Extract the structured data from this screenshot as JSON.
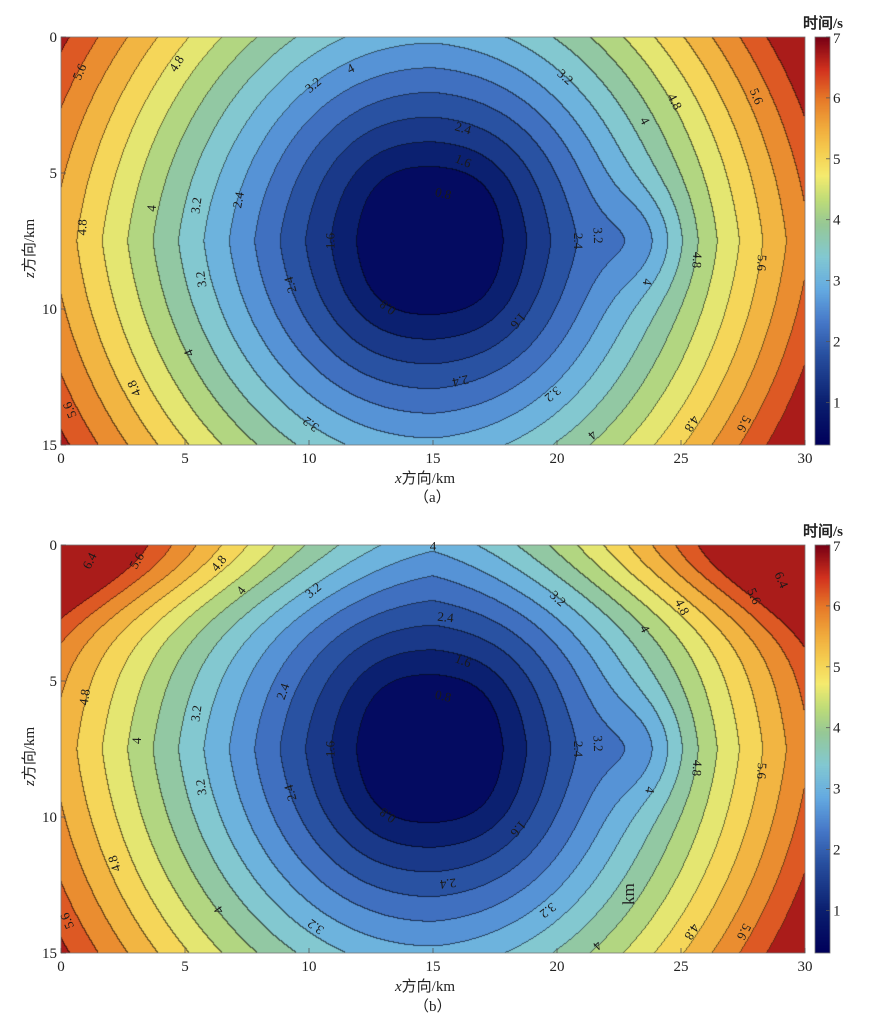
{
  "chart_data": [
    {
      "type": "contour",
      "panel_label": "（a）",
      "xlabel_var": "x",
      "xlabel": "方向/km",
      "ylabel_var": "z",
      "ylabel": "方向/km",
      "xlim": [
        0,
        30
      ],
      "ylim": [
        15,
        0
      ],
      "xticks": [
        0,
        5,
        10,
        15,
        20,
        25,
        30
      ],
      "yticks": [
        0,
        5,
        10,
        15
      ],
      "colorbar": {
        "title": "时间/s",
        "range": [
          0.3,
          7
        ],
        "ticks": [
          1,
          2,
          3,
          4,
          5,
          6,
          7
        ]
      },
      "contour_levels": [
        0.8,
        1.2,
        1.6,
        2.0,
        2.4,
        2.8,
        3.2,
        3.6,
        4.0,
        4.4,
        4.8,
        5.2,
        5.6,
        6.0,
        6.4
      ],
      "field": {
        "source_x_km": 15,
        "source_z_km": 7.5,
        "min_time_s": 0.3,
        "max_time_s": 7,
        "anomaly_x_km": 23.5,
        "anomaly_z_km": 7.5,
        "corner_speedup": false
      },
      "contour_labels": [
        {
          "text": "5.6",
          "x": 0.8,
          "z": 1.3
        },
        {
          "text": "4.8",
          "x": 4.7,
          "z": 1.0
        },
        {
          "text": "4",
          "x": 11.7,
          "z": 1.2
        },
        {
          "text": "3.2",
          "x": 10.2,
          "z": 1.8
        },
        {
          "text": "3.2",
          "x": 20.3,
          "z": 1.5
        },
        {
          "text": "2.4",
          "x": 16.2,
          "z": 3.4
        },
        {
          "text": "1.6",
          "x": 16.2,
          "z": 4.6
        },
        {
          "text": "0.8",
          "x": 15.4,
          "z": 5.8
        },
        {
          "text": "2.4",
          "x": 7.2,
          "z": 6.0
        },
        {
          "text": "3.2",
          "x": 5.5,
          "z": 6.2
        },
        {
          "text": "4",
          "x": 3.7,
          "z": 6.3
        },
        {
          "text": "4.8",
          "x": 0.9,
          "z": 7.0
        },
        {
          "text": "1.6",
          "x": 10.9,
          "z": 7.5
        },
        {
          "text": "2.4",
          "x": 20.8,
          "z": 7.5
        },
        {
          "text": "3.2",
          "x": 21.6,
          "z": 7.3
        },
        {
          "text": "4",
          "x": 23.6,
          "z": 9.0
        },
        {
          "text": "4.8",
          "x": 25.6,
          "z": 8.2
        },
        {
          "text": "5.6",
          "x": 28.2,
          "z": 8.3
        },
        {
          "text": "4.8",
          "x": 24.7,
          "z": 2.4
        },
        {
          "text": "5.6",
          "x": 28.0,
          "z": 2.2
        },
        {
          "text": "4",
          "x": 23.5,
          "z": 3.1
        },
        {
          "text": "3.2",
          "x": 5.7,
          "z": 8.9
        },
        {
          "text": "2.4",
          "x": 9.3,
          "z": 9.1
        },
        {
          "text": "0.8",
          "x": 13.2,
          "z": 9.9
        },
        {
          "text": "1.6",
          "x": 18.4,
          "z": 10.4
        },
        {
          "text": "4",
          "x": 5.2,
          "z": 11.6
        },
        {
          "text": "4.8",
          "x": 3.0,
          "z": 12.9
        },
        {
          "text": "5.6",
          "x": 0.4,
          "z": 13.7
        },
        {
          "text": "2.4",
          "x": 16.1,
          "z": 12.6
        },
        {
          "text": "3.2",
          "x": 19.8,
          "z": 13.1
        },
        {
          "text": "3.2",
          "x": 10.1,
          "z": 14.2
        },
        {
          "text": "4",
          "x": 21.4,
          "z": 14.6
        },
        {
          "text": "4.8",
          "x": 25.4,
          "z": 14.2
        },
        {
          "text": "5.6",
          "x": 27.5,
          "z": 14.2
        }
      ]
    },
    {
      "type": "contour",
      "panel_label": "（b）",
      "xlabel_var": "x",
      "xlabel": "方向/km",
      "ylabel_var": "z",
      "ylabel": "方向/km",
      "xlim": [
        0,
        30
      ],
      "ylim": [
        15,
        0
      ],
      "xticks": [
        0,
        5,
        10,
        15,
        20,
        25,
        30
      ],
      "yticks": [
        0,
        5,
        10,
        15
      ],
      "colorbar": {
        "title": "时间/s",
        "range": [
          0.3,
          7
        ],
        "ticks": [
          1,
          2,
          3,
          4,
          5,
          6,
          7
        ]
      },
      "contour_levels": [
        0.8,
        1.2,
        1.6,
        2.0,
        2.4,
        2.8,
        3.2,
        3.6,
        4.0,
        4.4,
        4.8,
        5.2,
        5.6,
        6.0,
        6.4
      ],
      "field": {
        "source_x_km": 15,
        "source_z_km": 7.5,
        "min_time_s": 0.3,
        "max_time_s": 7,
        "anomaly_x_km": 23.5,
        "anomaly_z_km": 7.5,
        "corner_speedup": true
      },
      "annotation": "km",
      "contour_labels": [
        {
          "text": "6.4",
          "x": 1.2,
          "z": 0.6
        },
        {
          "text": "5.6",
          "x": 3.1,
          "z": 0.6
        },
        {
          "text": "4.8",
          "x": 6.4,
          "z": 0.7
        },
        {
          "text": "4",
          "x": 15.0,
          "z": 0.1
        },
        {
          "text": "4",
          "x": 7.3,
          "z": 1.7
        },
        {
          "text": "3.2",
          "x": 10.2,
          "z": 1.7
        },
        {
          "text": "3.2",
          "x": 20.0,
          "z": 2.0
        },
        {
          "text": "2.4",
          "x": 15.5,
          "z": 2.7
        },
        {
          "text": "1.6",
          "x": 16.2,
          "z": 4.3
        },
        {
          "text": "0.8",
          "x": 15.4,
          "z": 5.6
        },
        {
          "text": "2.4",
          "x": 9.0,
          "z": 5.4
        },
        {
          "text": "3.2",
          "x": 5.5,
          "z": 6.2
        },
        {
          "text": "4",
          "x": 3.1,
          "z": 7.2
        },
        {
          "text": "4.8",
          "x": 1.0,
          "z": 5.6
        },
        {
          "text": "1.6",
          "x": 10.9,
          "z": 7.5
        },
        {
          "text": "2.4",
          "x": 20.8,
          "z": 7.5
        },
        {
          "text": "3.2",
          "x": 21.6,
          "z": 7.3
        },
        {
          "text": "4",
          "x": 23.7,
          "z": 9.0
        },
        {
          "text": "4.8",
          "x": 25.6,
          "z": 8.2
        },
        {
          "text": "5.6",
          "x": 28.2,
          "z": 8.3
        },
        {
          "text": "4",
          "x": 23.5,
          "z": 3.1
        },
        {
          "text": "4.8",
          "x": 25.0,
          "z": 2.3
        },
        {
          "text": "5.6",
          "x": 27.9,
          "z": 1.9
        },
        {
          "text": "6.4",
          "x": 29.0,
          "z": 1.3
        },
        {
          "text": "3.2",
          "x": 5.7,
          "z": 8.9
        },
        {
          "text": "2.4",
          "x": 9.3,
          "z": 9.1
        },
        {
          "text": "0.8",
          "x": 13.2,
          "z": 9.9
        },
        {
          "text": "1.6",
          "x": 18.4,
          "z": 10.4
        },
        {
          "text": "4.8",
          "x": 2.2,
          "z": 11.7
        },
        {
          "text": "4",
          "x": 6.4,
          "z": 13.4
        },
        {
          "text": "5.6",
          "x": 0.3,
          "z": 13.8
        },
        {
          "text": "2.4",
          "x": 15.6,
          "z": 12.4
        },
        {
          "text": "3.2",
          "x": 19.6,
          "z": 13.4
        },
        {
          "text": "3.2",
          "x": 10.3,
          "z": 14.0
        },
        {
          "text": "4",
          "x": 21.6,
          "z": 14.7
        },
        {
          "text": "4.8",
          "x": 25.4,
          "z": 14.2
        },
        {
          "text": "5.6",
          "x": 27.5,
          "z": 14.2
        }
      ]
    }
  ]
}
